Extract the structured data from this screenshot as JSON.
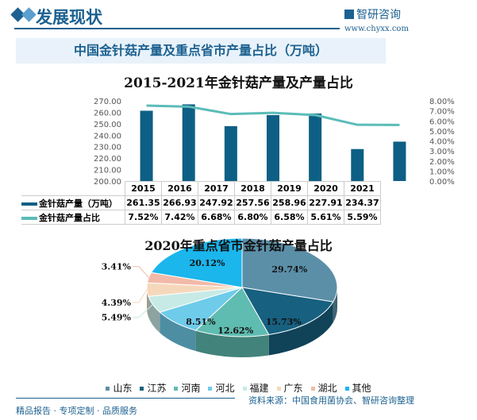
{
  "header": {
    "title": "发展现状",
    "logo": "智研咨询",
    "url": "www.chyxx.com"
  },
  "banner": "中国金针菇产量及重点省市产量占比（万吨）",
  "footer": {
    "source": "资料来源：中国食用菌协会、智研咨询整理",
    "slogan": "精品报告 · 专项定制 · 品质服务"
  },
  "colors": {
    "bar": "#0e5f85",
    "line": "#5bbcb8"
  },
  "chart_data": [
    {
      "type": "bar+line",
      "title": "2015-2021年金针菇产量及产量占比",
      "categories": [
        "2015",
        "2016",
        "2017",
        "2018",
        "2019",
        "2020",
        "2021"
      ],
      "series": [
        {
          "name": "金针菇产量（万吨）",
          "type": "bar",
          "axis": "left",
          "values": [
            261.35,
            266.93,
            247.92,
            257.56,
            258.96,
            227.91,
            234.37
          ],
          "labels": [
            "261.35",
            "266.93",
            "247.92",
            "257.56",
            "258.96",
            "227.91",
            "234.37"
          ]
        },
        {
          "name": "金针菇产量占比",
          "type": "line",
          "axis": "right",
          "values": [
            7.52,
            7.42,
            6.68,
            6.8,
            6.58,
            5.61,
            5.59
          ],
          "labels": [
            "7.52%",
            "7.42%",
            "6.68%",
            "6.80%",
            "6.58%",
            "5.61%",
            "5.59%"
          ]
        }
      ],
      "ylim_left": [
        200,
        270
      ],
      "yticks_left": [
        "200.00",
        "210.00",
        "220.00",
        "230.00",
        "240.00",
        "250.00",
        "260.00",
        "270.00"
      ],
      "ylim_right": [
        0,
        8
      ],
      "yticks_right": [
        "0.00%",
        "1.00%",
        "2.00%",
        "3.00%",
        "4.00%",
        "5.00%",
        "6.00%",
        "7.00%",
        "8.00%"
      ],
      "data_table": true
    },
    {
      "type": "pie",
      "title": "2020年重点省市金针菇产量占比",
      "style": "3d",
      "slices": [
        {
          "name": "山东",
          "value": 29.74,
          "label": "29.74%",
          "color": "#5b8fa8"
        },
        {
          "name": "江苏",
          "value": 15.73,
          "label": "15.73%",
          "color": "#17607f"
        },
        {
          "name": "河南",
          "value": 12.62,
          "label": "12.62%",
          "color": "#5fbcb0"
        },
        {
          "name": "河北",
          "value": 8.51,
          "label": "8.51%",
          "color": "#6ecbea"
        },
        {
          "name": "福建",
          "value": 5.49,
          "label": "5.49%",
          "color": "#c8eae6"
        },
        {
          "name": "广东",
          "value": 4.39,
          "label": "4.39%",
          "color": "#f5d8bb"
        },
        {
          "name": "湖北",
          "value": 3.41,
          "label": "3.41%",
          "color": "#f2b9a8"
        },
        {
          "name": "其他",
          "value": 20.12,
          "label": "20.12%",
          "color": "#1ab6ec"
        }
      ],
      "legend": "bottom"
    }
  ]
}
